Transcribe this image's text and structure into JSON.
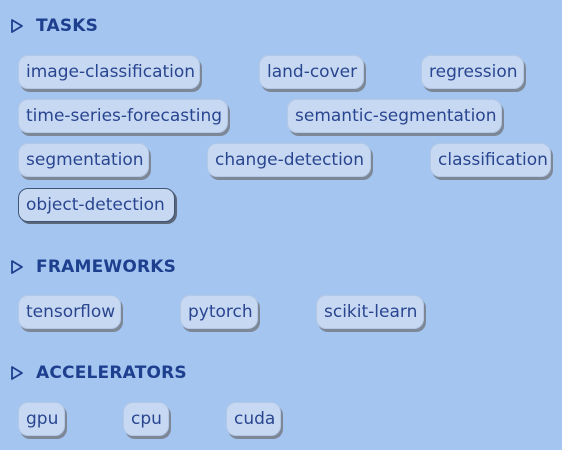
{
  "sections": {
    "tasks": {
      "title": "TASKS",
      "chips": [
        "image-classification",
        "land-cover",
        "regression",
        "time-series-forecasting",
        "semantic-segmentation",
        "segmentation",
        "change-detection",
        "classification",
        "object-detection"
      ]
    },
    "frameworks": {
      "title": "FRAMEWORKS",
      "chips": [
        "tensorflow",
        "pytorch",
        "scikit-learn"
      ]
    },
    "accelerators": {
      "title": "ACCELERATORS",
      "chips": [
        "gpu",
        "cpu",
        "cuda"
      ]
    }
  },
  "icons": {
    "section_toggle": "triangle-right-outline-icon"
  },
  "colors": {
    "background": "#a3c5f0",
    "chip_background": "#c7d9f2",
    "text": "#1e3a8a"
  }
}
